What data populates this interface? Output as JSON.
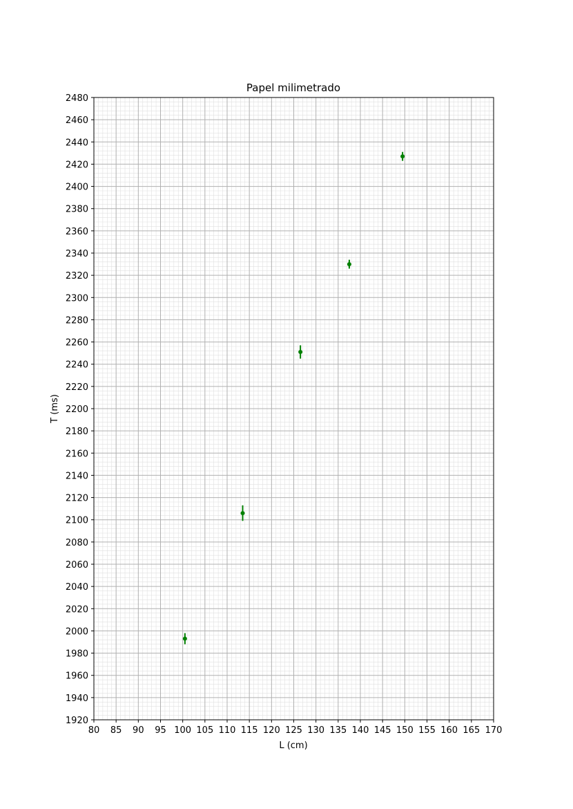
{
  "chart_data": {
    "type": "scatter",
    "title": "Papel milimetrado",
    "xlabel": "L (cm)",
    "ylabel": "T (ms)",
    "xlim": [
      80,
      170
    ],
    "ylim": [
      1920,
      2480
    ],
    "x_major_step": 5,
    "x_minor_step": 1,
    "y_major_step": 20,
    "y_minor_step": 4,
    "grid": true,
    "marker_color": "#008000",
    "major_grid_color": "#b0b0b0",
    "minor_grid_color": "#e0e0e0",
    "points": [
      {
        "x": 100.5,
        "y": 1993,
        "yerr": 5
      },
      {
        "x": 113.5,
        "y": 2106,
        "yerr": 7
      },
      {
        "x": 126.5,
        "y": 2251,
        "yerr": 6
      },
      {
        "x": 137.5,
        "y": 2330,
        "yerr": 4
      },
      {
        "x": 149.5,
        "y": 2427,
        "yerr": 4
      }
    ]
  }
}
